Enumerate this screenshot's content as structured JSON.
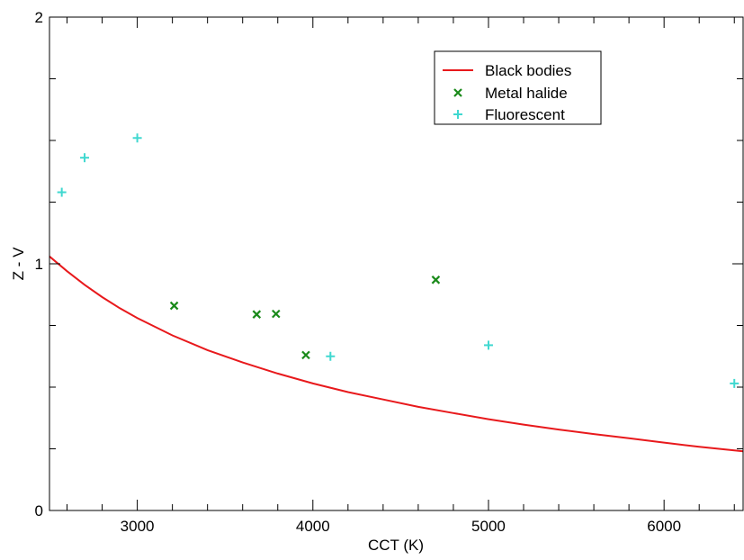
{
  "chart_data": {
    "type": "scatter",
    "xlabel": "CCT (K)",
    "ylabel": "Z - V",
    "xlim": [
      2500,
      6450
    ],
    "ylim": [
      0,
      2
    ],
    "x_ticks": [
      3000,
      4000,
      5000,
      6000
    ],
    "x_tick_labels": [
      "3000",
      "4000",
      "5000",
      "6000"
    ],
    "y_ticks": [
      0,
      1,
      2
    ],
    "y_tick_labels": [
      "0",
      "1",
      "2"
    ],
    "legend_position": "top-right",
    "grid": false,
    "series": [
      {
        "name": "Black bodies",
        "kind": "line",
        "color": "#e8191c",
        "x": [
          2500,
          2600,
          2700,
          2800,
          2900,
          3000,
          3200,
          3400,
          3600,
          3800,
          4000,
          4200,
          4400,
          4600,
          4800,
          5000,
          5200,
          5400,
          5600,
          5800,
          6000,
          6200,
          6450
        ],
        "y": [
          1.03,
          0.97,
          0.915,
          0.865,
          0.82,
          0.78,
          0.71,
          0.65,
          0.6,
          0.555,
          0.515,
          0.48,
          0.45,
          0.42,
          0.395,
          0.37,
          0.348,
          0.328,
          0.31,
          0.293,
          0.275,
          0.258,
          0.24
        ]
      },
      {
        "name": "Metal halide",
        "kind": "scatter",
        "marker": "x",
        "color": "#1a8a1a",
        "x": [
          3210,
          3680,
          3790,
          3960,
          4700
        ],
        "y": [
          0.83,
          0.795,
          0.797,
          0.63,
          0.935
        ]
      },
      {
        "name": "Fluorescent",
        "kind": "scatter",
        "marker": "+",
        "color": "#40d8d0",
        "x": [
          2570,
          2700,
          3000,
          4100,
          5000,
          6400
        ],
        "y": [
          1.29,
          1.43,
          1.51,
          0.625,
          0.67,
          0.515
        ]
      }
    ]
  }
}
